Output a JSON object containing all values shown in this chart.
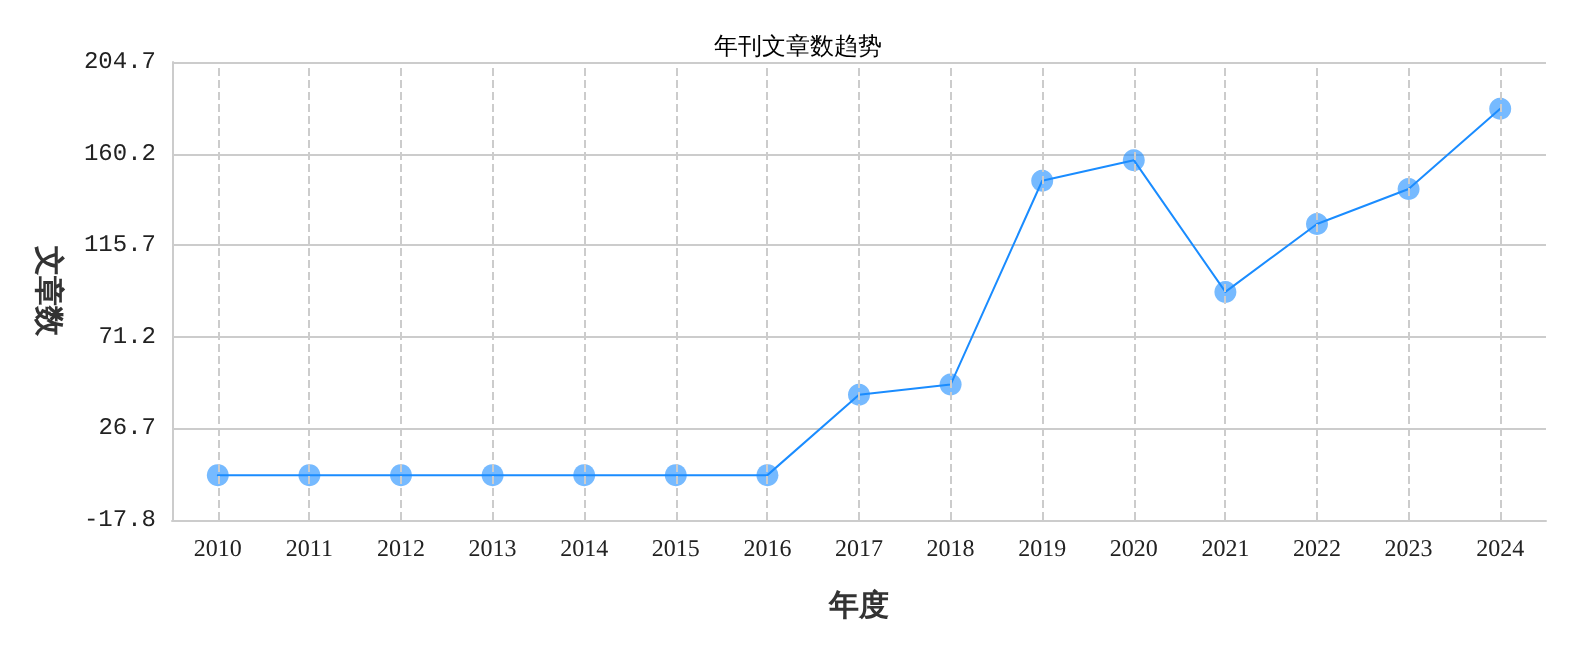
{
  "chart_data": {
    "type": "line",
    "title": "年刊文章数趋势",
    "xlabel": "年度",
    "ylabel": "文章数",
    "categories": [
      "2010",
      "2011",
      "2012",
      "2013",
      "2014",
      "2015",
      "2016",
      "2017",
      "2018",
      "2019",
      "2020",
      "2021",
      "2022",
      "2023",
      "2024"
    ],
    "series": [
      {
        "color": "#1a8cff",
        "values": [
          4,
          4,
          4,
          4,
          4,
          4,
          4,
          43,
          48,
          147,
          157,
          93,
          126,
          143,
          182
        ]
      }
    ],
    "ylim": [
      -17.8,
      204.7
    ],
    "yticks": [
      -17.8,
      26.7,
      71.2,
      115.7,
      160.2,
      204.7
    ],
    "grid": true,
    "marker": "circle",
    "line_style": "solid"
  }
}
